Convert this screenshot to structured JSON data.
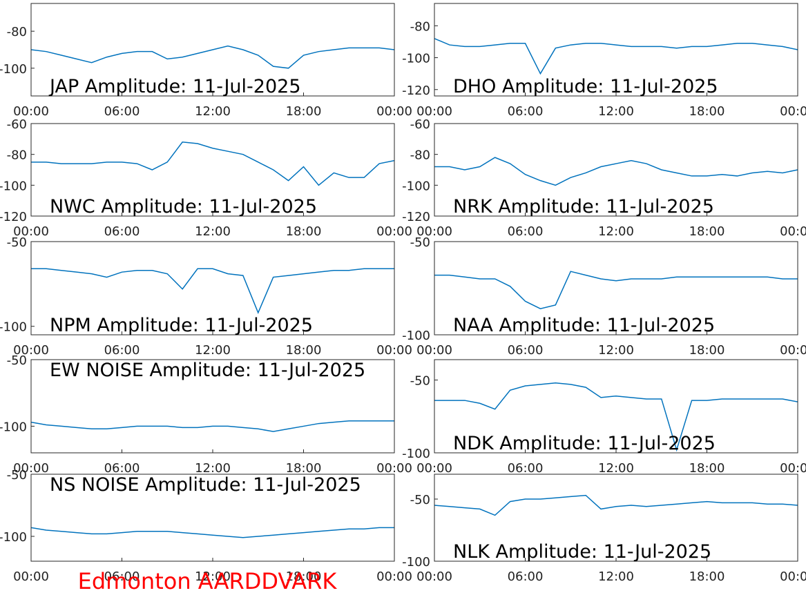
{
  "caption": "Edmonton AARDDVARK",
  "chart_data": [
    {
      "type": "line",
      "title": "JAP Amplitude: 11-Jul-2025",
      "title_position": "bottom",
      "color": "#0072bd",
      "x": [
        0,
        1,
        2,
        3,
        4,
        5,
        6,
        7,
        8,
        9,
        10,
        11,
        12,
        13,
        14,
        15,
        16,
        17,
        18,
        19,
        20,
        21,
        22,
        23,
        24
      ],
      "values": [
        -90,
        -91,
        -93,
        -95,
        -97,
        -94,
        -92,
        -91,
        -91,
        -95,
        -94,
        -92,
        -90,
        -88,
        -90,
        -93,
        -99,
        -100,
        -93,
        -91,
        -90,
        -89,
        -89,
        -89,
        -90
      ],
      "xlim": [
        0,
        24
      ],
      "xticks": [
        {
          "value": 0,
          "label": "00:00"
        },
        {
          "value": 6,
          "label": "06:00"
        },
        {
          "value": 12,
          "label": "12:00"
        },
        {
          "value": 18,
          "label": "18:00"
        },
        {
          "value": 24,
          "label": "00:00"
        }
      ],
      "ylim": [
        -115,
        -65
      ],
      "yticks": [
        -100,
        -80
      ]
    },
    {
      "type": "line",
      "title": "DHO Amplitude: 11-Jul-2025",
      "title_position": "bottom",
      "color": "#0072bd",
      "x": [
        0,
        1,
        2,
        3,
        4,
        5,
        6,
        7,
        8,
        9,
        10,
        11,
        12,
        13,
        14,
        15,
        16,
        17,
        18,
        19,
        20,
        21,
        22,
        23,
        24
      ],
      "values": [
        -88,
        -92,
        -93,
        -93,
        -92,
        -91,
        -91,
        -110,
        -94,
        -92,
        -91,
        -91,
        -92,
        -93,
        -93,
        -93,
        -94,
        -93,
        -93,
        -92,
        -91,
        -91,
        -92,
        -93,
        -95
      ],
      "xlim": [
        0,
        24
      ],
      "xticks": [
        {
          "value": 0,
          "label": "00:00"
        },
        {
          "value": 6,
          "label": "06:00"
        },
        {
          "value": 12,
          "label": "12:00"
        },
        {
          "value": 18,
          "label": "18:00"
        },
        {
          "value": 24,
          "label": "00:00"
        }
      ],
      "ylim": [
        -124,
        -66
      ],
      "yticks": [
        -120,
        -100,
        -80
      ]
    },
    {
      "type": "line",
      "title": "NWC Amplitude: 11-Jul-2025",
      "title_position": "bottom",
      "color": "#0072bd",
      "x": [
        0,
        1,
        2,
        3,
        4,
        5,
        6,
        7,
        8,
        9,
        10,
        11,
        12,
        13,
        14,
        15,
        16,
        17,
        18,
        19,
        20,
        21,
        22,
        23,
        24
      ],
      "values": [
        -85,
        -85,
        -86,
        -86,
        -86,
        -85,
        -85,
        -86,
        -90,
        -85,
        -72,
        -73,
        -76,
        -78,
        -80,
        -85,
        -90,
        -97,
        -88,
        -100,
        -92,
        -95,
        -95,
        -86,
        -84
      ],
      "xlim": [
        0,
        24
      ],
      "xticks": [
        {
          "value": 0,
          "label": "00:00"
        },
        {
          "value": 6,
          "label": "06:00"
        },
        {
          "value": 12,
          "label": "12:00"
        },
        {
          "value": 18,
          "label": "18:00"
        },
        {
          "value": 24,
          "label": "00:00"
        }
      ],
      "ylim": [
        -120,
        -60
      ],
      "yticks": [
        -120,
        -100,
        -80,
        -60
      ]
    },
    {
      "type": "line",
      "title": "NRK Amplitude: 11-Jul-2025",
      "title_position": "bottom",
      "color": "#0072bd",
      "x": [
        0,
        1,
        2,
        3,
        4,
        5,
        6,
        7,
        8,
        9,
        10,
        11,
        12,
        13,
        14,
        15,
        16,
        17,
        18,
        19,
        20,
        21,
        22,
        23,
        24
      ],
      "values": [
        -88,
        -88,
        -90,
        -88,
        -82,
        -86,
        -93,
        -97,
        -100,
        -95,
        -92,
        -88,
        -86,
        -84,
        -86,
        -90,
        -92,
        -94,
        -94,
        -93,
        -94,
        -92,
        -91,
        -92,
        -90
      ],
      "xlim": [
        0,
        24
      ],
      "xticks": [
        {
          "value": 0,
          "label": "00:00"
        },
        {
          "value": 6,
          "label": "06:00"
        },
        {
          "value": 12,
          "label": "12:00"
        },
        {
          "value": 18,
          "label": "18:00"
        },
        {
          "value": 24,
          "label": "00:00"
        }
      ],
      "ylim": [
        -120,
        -60
      ],
      "yticks": [
        -120,
        -100,
        -80,
        -60
      ]
    },
    {
      "type": "line",
      "title": "NPM Amplitude: 11-Jul-2025",
      "title_position": "bottom",
      "color": "#0072bd",
      "x": [
        0,
        1,
        2,
        3,
        4,
        5,
        6,
        7,
        8,
        9,
        10,
        11,
        12,
        13,
        14,
        15,
        16,
        17,
        18,
        19,
        20,
        21,
        22,
        23,
        24
      ],
      "values": [
        -66,
        -66,
        -67,
        -68,
        -69,
        -71,
        -68,
        -67,
        -67,
        -69,
        -78,
        -66,
        -66,
        -69,
        -70,
        -92,
        -71,
        -70,
        -69,
        -68,
        -67,
        -67,
        -66,
        -66,
        -66
      ],
      "xlim": [
        0,
        24
      ],
      "xticks": [
        {
          "value": 0,
          "label": "00:00"
        },
        {
          "value": 6,
          "label": "06:00"
        },
        {
          "value": 12,
          "label": "12:00"
        },
        {
          "value": 18,
          "label": "18:00"
        },
        {
          "value": 24,
          "label": "00:00"
        }
      ],
      "ylim": [
        -105,
        -50
      ],
      "yticks": [
        -100,
        -50
      ]
    },
    {
      "type": "line",
      "title": "NAA Amplitude: 11-Jul-2025",
      "title_position": "bottom",
      "color": "#0072bd",
      "x": [
        0,
        1,
        2,
        3,
        4,
        5,
        6,
        7,
        8,
        9,
        10,
        11,
        12,
        13,
        14,
        15,
        16,
        17,
        18,
        19,
        20,
        21,
        22,
        23,
        24
      ],
      "values": [
        -68,
        -68,
        -69,
        -70,
        -70,
        -74,
        -82,
        -86,
        -84,
        -66,
        -68,
        -70,
        -71,
        -70,
        -70,
        -70,
        -69,
        -69,
        -69,
        -69,
        -69,
        -69,
        -69,
        -70,
        -70
      ],
      "xlim": [
        0,
        24
      ],
      "xticks": [
        {
          "value": 0,
          "label": "00:00"
        },
        {
          "value": 6,
          "label": "06:00"
        },
        {
          "value": 12,
          "label": "12:00"
        },
        {
          "value": 18,
          "label": "18:00"
        },
        {
          "value": 24,
          "label": "00:00"
        }
      ],
      "ylim": [
        -100,
        -50
      ],
      "yticks": [
        -100,
        -50
      ]
    },
    {
      "type": "line",
      "title": "EW NOISE Amplitude: 11-Jul-2025",
      "title_position": "top",
      "color": "#0072bd",
      "x": [
        0,
        1,
        2,
        3,
        4,
        5,
        6,
        7,
        8,
        9,
        10,
        11,
        12,
        13,
        14,
        15,
        16,
        17,
        18,
        19,
        20,
        21,
        22,
        23,
        24
      ],
      "values": [
        -97,
        -99,
        -100,
        -101,
        -102,
        -102,
        -101,
        -100,
        -100,
        -100,
        -101,
        -101,
        -100,
        -100,
        -101,
        -102,
        -104,
        -102,
        -100,
        -98,
        -97,
        -96,
        -96,
        -96,
        -96
      ],
      "xlim": [
        0,
        24
      ],
      "xticks": [
        {
          "value": 0,
          "label": "00:00"
        },
        {
          "value": 6,
          "label": "06:00"
        },
        {
          "value": 12,
          "label": "12:00"
        },
        {
          "value": 18,
          "label": "18:00"
        },
        {
          "value": 24,
          "label": "00:00"
        }
      ],
      "ylim": [
        -120,
        -50
      ],
      "yticks": [
        -100,
        -50
      ]
    },
    {
      "type": "line",
      "title": "NDK Amplitude: 11-Jul-2025",
      "title_position": "bottom",
      "color": "#0072bd",
      "x": [
        0,
        1,
        2,
        3,
        4,
        5,
        6,
        7,
        8,
        9,
        10,
        11,
        12,
        13,
        14,
        15,
        16,
        17,
        18,
        19,
        20,
        21,
        22,
        23,
        24
      ],
      "values": [
        -64,
        -64,
        -64,
        -66,
        -70,
        -57,
        -54,
        -53,
        -52,
        -53,
        -55,
        -62,
        -61,
        -62,
        -63,
        -63,
        -98,
        -64,
        -64,
        -63,
        -63,
        -63,
        -63,
        -63,
        -65
      ],
      "xlim": [
        0,
        24
      ],
      "xticks": [
        {
          "value": 0,
          "label": "00:00"
        },
        {
          "value": 6,
          "label": "06:00"
        },
        {
          "value": 12,
          "label": "12:00"
        },
        {
          "value": 18,
          "label": "18:00"
        },
        {
          "value": 24,
          "label": "00:00"
        }
      ],
      "ylim": [
        -100,
        -36
      ],
      "yticks": [
        -100,
        -50
      ]
    },
    {
      "type": "line",
      "title": "NS NOISE Amplitude: 11-Jul-2025",
      "title_position": "top",
      "color": "#0072bd",
      "x": [
        0,
        1,
        2,
        3,
        4,
        5,
        6,
        7,
        8,
        9,
        10,
        11,
        12,
        13,
        14,
        15,
        16,
        17,
        18,
        19,
        20,
        21,
        22,
        23,
        24
      ],
      "values": [
        -93,
        -95,
        -96,
        -97,
        -98,
        -98,
        -97,
        -96,
        -96,
        -96,
        -97,
        -98,
        -99,
        -100,
        -101,
        -100,
        -99,
        -98,
        -97,
        -96,
        -95,
        -94,
        -94,
        -93,
        -93
      ],
      "xlim": [
        0,
        24
      ],
      "xticks": [
        {
          "value": 0,
          "label": "00:00"
        },
        {
          "value": 6,
          "label": "06:00"
        },
        {
          "value": 12,
          "label": "12:00"
        },
        {
          "value": 18,
          "label": "18:00"
        },
        {
          "value": 24,
          "label": "00:00"
        }
      ],
      "ylim": [
        -120,
        -50
      ],
      "yticks": [
        -100,
        -50
      ]
    },
    {
      "type": "line",
      "title": "NLK Amplitude: 11-Jul-2025",
      "title_position": "bottom",
      "color": "#0072bd",
      "x": [
        0,
        1,
        2,
        3,
        4,
        5,
        6,
        7,
        8,
        9,
        10,
        11,
        12,
        13,
        14,
        15,
        16,
        17,
        18,
        19,
        20,
        21,
        22,
        23,
        24
      ],
      "values": [
        -55,
        -56,
        -57,
        -58,
        -63,
        -52,
        -50,
        -50,
        -49,
        -48,
        -47,
        -58,
        -56,
        -55,
        -56,
        -55,
        -54,
        -53,
        -52,
        -53,
        -53,
        -53,
        -54,
        -54,
        -55
      ],
      "xlim": [
        0,
        24
      ],
      "xticks": [
        {
          "value": 0,
          "label": "00:00"
        },
        {
          "value": 6,
          "label": "06:00"
        },
        {
          "value": 12,
          "label": "12:00"
        },
        {
          "value": 18,
          "label": "18:00"
        },
        {
          "value": 24,
          "label": "00:00"
        }
      ],
      "ylim": [
        -100,
        -30
      ],
      "yticks": [
        -100,
        -50
      ]
    }
  ]
}
